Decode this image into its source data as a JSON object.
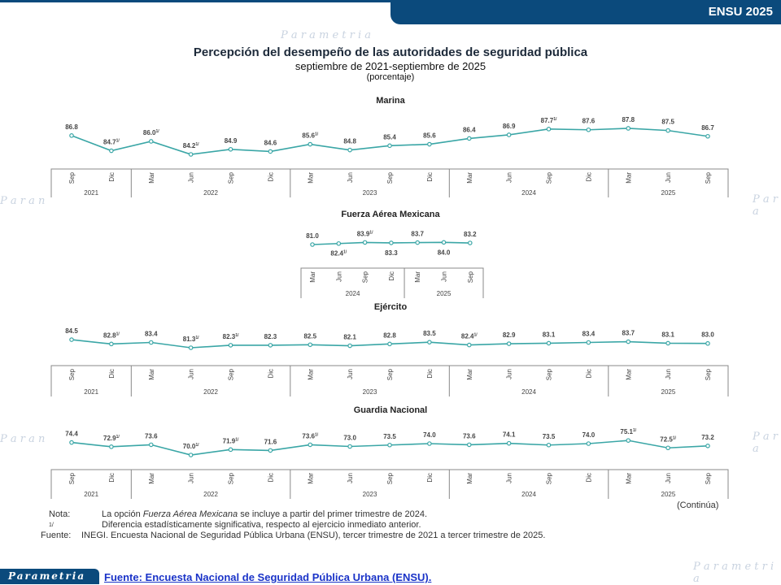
{
  "header": {
    "badge": "ENSU 2025"
  },
  "title": "Percepción del desempeño de las autoridades de seguridad pública",
  "subtitle": "septiembre de 2021-septiembre de 2025",
  "unit": "(porcentaje)",
  "continua": "(Continúa)",
  "notes": {
    "nota_label": "Nota:",
    "nota_pre": "La opción ",
    "nota_italic": "Fuerza Aérea Mexicana",
    "nota_post": " se incluye a partir del primer trimestre de 2024.",
    "sig_label": "1/",
    "sig_text": "Diferencia estadísticamente significativa, respecto al ejercicio inmediato anterior.",
    "fuente_label": "Fuente:",
    "fuente_text": "INEGI. Encuesta Nacional de Seguridad Pública Urbana (ENSU), tercer trimestre de 2021 a tercer trimestre de 2025."
  },
  "footer": {
    "logo": "Parametria",
    "link": "Fuente: Encuesta Nacional de Seguridad Pública Urbana (ENSU)."
  },
  "colors": {
    "line": "#3aa6a6",
    "header": "#0b4a7c"
  },
  "chart_data": [
    {
      "type": "line",
      "title": "Marina",
      "x": [
        "Sep",
        "Dic",
        "Mar",
        "Jun",
        "Sep",
        "Dic",
        "Mar",
        "Jun",
        "Sep",
        "Dic",
        "Mar",
        "Jun",
        "Sep",
        "Dic",
        "Mar",
        "Jun",
        "Sep"
      ],
      "years": [
        {
          "label": "2021",
          "span": 2
        },
        {
          "label": "2022",
          "span": 4
        },
        {
          "label": "2023",
          "span": 4
        },
        {
          "label": "2024",
          "span": 4
        },
        {
          "label": "2025",
          "span": 3
        }
      ],
      "values": [
        86.8,
        84.7,
        86.0,
        84.2,
        84.9,
        84.6,
        85.6,
        84.8,
        85.4,
        85.6,
        86.4,
        86.9,
        87.7,
        87.6,
        87.8,
        87.5,
        86.7
      ],
      "significant": [
        false,
        true,
        true,
        true,
        false,
        false,
        true,
        false,
        false,
        false,
        false,
        false,
        true,
        false,
        false,
        false,
        false
      ]
    },
    {
      "type": "line",
      "title": "Fuerza Aérea Mexicana",
      "x": [
        "Mar",
        "Jun",
        "Sep",
        "Dic",
        "Mar",
        "Jun",
        "Sep"
      ],
      "years": [
        {
          "label": "2024",
          "span": 4
        },
        {
          "label": "2025",
          "span": 3
        }
      ],
      "values": [
        81.0,
        82.4,
        83.9,
        83.3,
        83.7,
        84.0,
        83.2
      ],
      "significant": [
        false,
        true,
        true,
        false,
        false,
        false,
        false
      ]
    },
    {
      "type": "line",
      "title": "Ejército",
      "x": [
        "Sep",
        "Dic",
        "Mar",
        "Jun",
        "Sep",
        "Dic",
        "Mar",
        "Jun",
        "Sep",
        "Dic",
        "Mar",
        "Jun",
        "Sep",
        "Dic",
        "Mar",
        "Jun",
        "Sep"
      ],
      "years": [
        {
          "label": "2021",
          "span": 2
        },
        {
          "label": "2022",
          "span": 4
        },
        {
          "label": "2023",
          "span": 4
        },
        {
          "label": "2024",
          "span": 4
        },
        {
          "label": "2025",
          "span": 3
        }
      ],
      "values": [
        84.5,
        82.8,
        83.4,
        81.3,
        82.3,
        82.3,
        82.5,
        82.1,
        82.8,
        83.5,
        82.4,
        82.9,
        83.1,
        83.4,
        83.7,
        83.1,
        83.0
      ],
      "significant": [
        false,
        true,
        false,
        true,
        true,
        false,
        false,
        false,
        false,
        false,
        true,
        false,
        false,
        false,
        false,
        false,
        false
      ]
    },
    {
      "type": "line",
      "title": "Guardia Nacional",
      "x": [
        "Sep",
        "Dic",
        "Mar",
        "Jun",
        "Sep",
        "Dic",
        "Mar",
        "Jun",
        "Sep",
        "Dic",
        "Mar",
        "Jun",
        "Sep",
        "Dic",
        "Mar",
        "Jun",
        "Sep"
      ],
      "years": [
        {
          "label": "2021",
          "span": 2
        },
        {
          "label": "2022",
          "span": 4
        },
        {
          "label": "2023",
          "span": 4
        },
        {
          "label": "2024",
          "span": 4
        },
        {
          "label": "2025",
          "span": 3
        }
      ],
      "values": [
        74.4,
        72.9,
        73.6,
        70.0,
        71.9,
        71.6,
        73.6,
        73.0,
        73.5,
        74.0,
        73.6,
        74.1,
        73.5,
        74.0,
        75.1,
        72.5,
        73.2
      ],
      "significant": [
        false,
        true,
        false,
        true,
        true,
        false,
        true,
        false,
        false,
        false,
        false,
        false,
        false,
        false,
        true,
        true,
        false
      ]
    }
  ]
}
